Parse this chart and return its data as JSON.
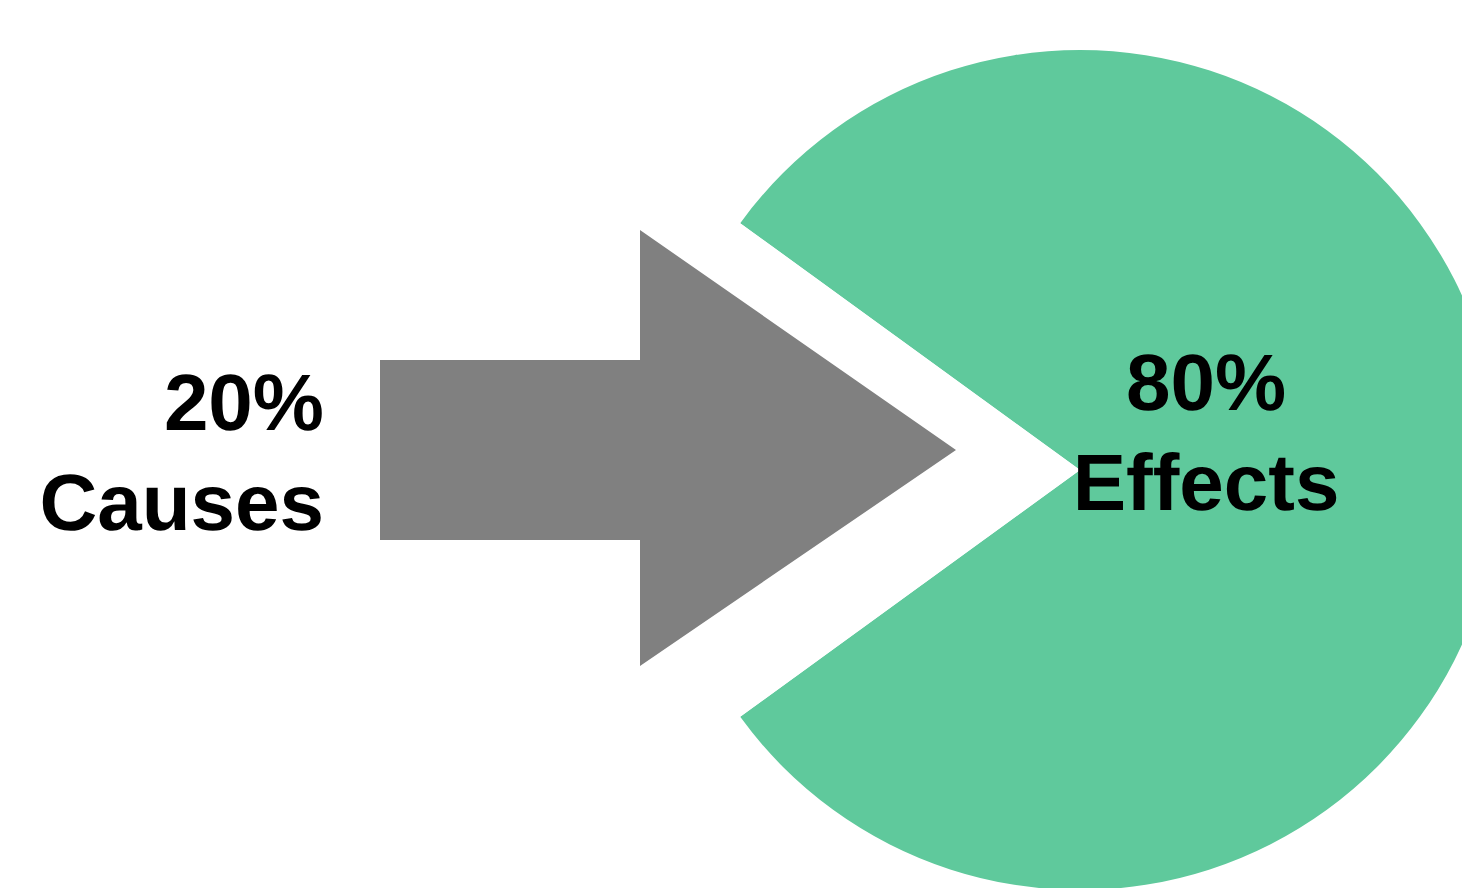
{
  "chart_data": {
    "type": "pie",
    "categories": [
      "Effects",
      "Causes"
    ],
    "values": [
      80,
      20
    ],
    "colors": [
      "#5fc99c",
      "#ffffff"
    ],
    "value_labels": [
      "80%",
      "20%"
    ]
  }
}
